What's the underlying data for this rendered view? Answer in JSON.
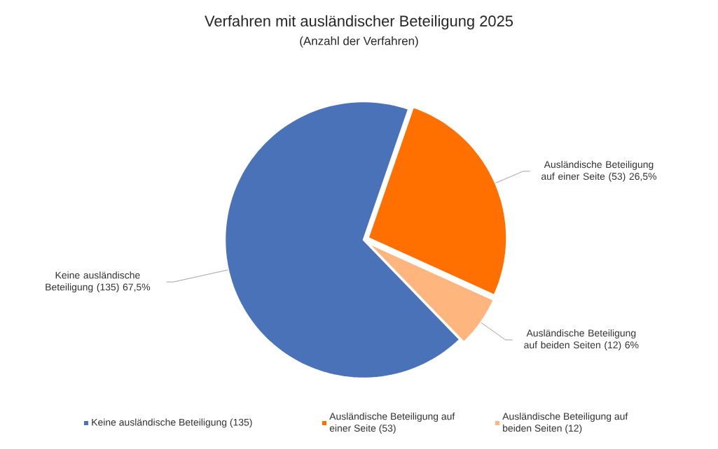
{
  "chart_data": {
    "type": "pie",
    "title": "Verfahren mit ausländischer Beteiligung 2025",
    "subtitle": "(Anzahl der Verfahren)",
    "categories": [
      "Keine ausländische Beteiligung (135)",
      "Ausländische Beteiligung auf einer Seite (53)",
      "Ausländische Beteiligung auf beiden Seiten (12)"
    ],
    "values": [
      135,
      53,
      12
    ],
    "colors": [
      "#4a72b8",
      "#ff7000",
      "#ffb57d"
    ],
    "value_labels": [
      "Keine ausländische Beteiligung (135) 67,5%",
      "Ausländische Beteiligung auf einer Seite (53) 26,5%",
      "Ausländische Beteiligung auf beiden Seiten (12) 6%"
    ],
    "legend": "bottom"
  }
}
